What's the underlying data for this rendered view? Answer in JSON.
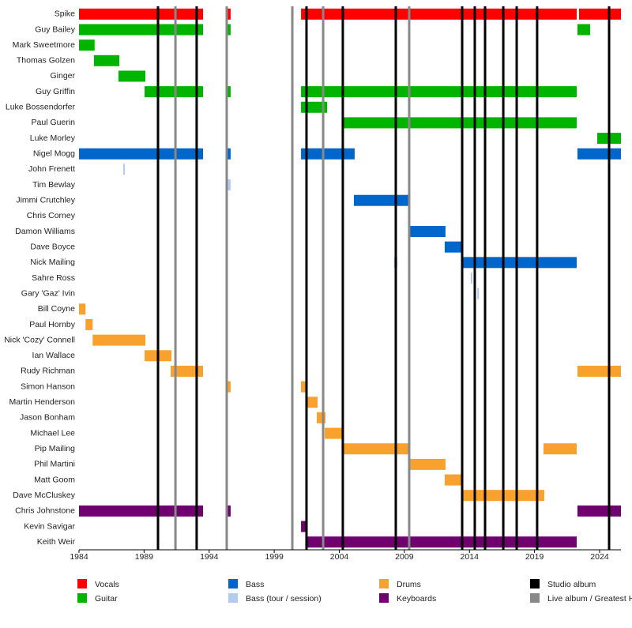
{
  "chart_data": {
    "type": "timeline",
    "xlim": [
      1984,
      2025.64
    ],
    "xticks": [
      1984,
      1989,
      1994,
      1999,
      2004,
      2009,
      2014,
      2019,
      2024
    ],
    "legend": [
      {
        "name": "Vocals",
        "color": "#ff0000"
      },
      {
        "name": "Guitar",
        "color": "#00b400"
      },
      {
        "name": "Bass",
        "color": "#0066cc"
      },
      {
        "name": "Bass (tour / session)",
        "color": "#b4cbf0"
      },
      {
        "name": "Drums",
        "color": "#f9a12e"
      },
      {
        "name": "Keyboards",
        "color": "#700070"
      },
      {
        "name": "Studio album",
        "color": "#000000"
      },
      {
        "name": "Live album / Greatest H",
        "color": "#888888"
      }
    ],
    "studio_albums": [
      1990.07,
      1993.04,
      2001.48,
      2004.27,
      2008.34,
      2013.44,
      2014.41,
      2015.2,
      2016.6,
      2017.63,
      2019.2,
      2024.73
    ],
    "live_albums": [
      1991.41,
      1995.35,
      2000.39,
      2002.76,
      2009.37
    ],
    "members": [
      {
        "name": "Spike",
        "spans": [
          {
            "role": "Vocals",
            "start": 1984,
            "end": 1993.53
          },
          {
            "role": "Vocals",
            "start": 1995.29,
            "end": 1995.65
          },
          {
            "role": "Vocals",
            "start": 2001.06,
            "end": 2022.24
          },
          {
            "role": "Vocals",
            "start": 2022.42,
            "end": 2025.64
          }
        ]
      },
      {
        "name": "Guy Bailey",
        "spans": [
          {
            "role": "Guitar",
            "start": 1984,
            "end": 1993.53
          },
          {
            "role": "Guitar",
            "start": 1995.29,
            "end": 1995.65
          },
          {
            "role": "Guitar",
            "start": 2022.3,
            "end": 2023.27
          }
        ]
      },
      {
        "name": "Mark Sweetmore",
        "spans": [
          {
            "role": "Guitar",
            "start": 1984,
            "end": 1985.2
          }
        ]
      },
      {
        "name": "Thomas Golzen",
        "spans": [
          {
            "role": "Guitar",
            "start": 1985.15,
            "end": 1987.1
          }
        ]
      },
      {
        "name": "Ginger",
        "spans": [
          {
            "role": "Guitar",
            "start": 1987.03,
            "end": 1989.1
          }
        ]
      },
      {
        "name": "Guy Griffin",
        "spans": [
          {
            "role": "Guitar",
            "start": 1989.04,
            "end": 1993.53
          },
          {
            "role": "Guitar",
            "start": 1995.29,
            "end": 1995.65
          },
          {
            "role": "Guitar",
            "start": 2001.06,
            "end": 2022.24
          }
        ]
      },
      {
        "name": "Luke Bossendorfer",
        "spans": [
          {
            "role": "Guitar",
            "start": 2001.06,
            "end": 2003.06
          }
        ]
      },
      {
        "name": "Paul Guerin",
        "spans": [
          {
            "role": "Guitar",
            "start": 2004.27,
            "end": 2022.24
          }
        ]
      },
      {
        "name": "Luke Morley",
        "spans": [
          {
            "role": "Guitar",
            "start": 2023.82,
            "end": 2025.64
          }
        ]
      },
      {
        "name": "Nigel Mogg",
        "spans": [
          {
            "role": "Bass",
            "start": 1984,
            "end": 1993.53
          },
          {
            "role": "Bass",
            "start": 1995.29,
            "end": 1995.65
          },
          {
            "role": "Bass",
            "start": 2001.06,
            "end": 2005.18
          },
          {
            "role": "Bass",
            "start": 2022.3,
            "end": 2025.64
          }
        ]
      },
      {
        "name": "John Frenett",
        "spans": [
          {
            "role": "Bass (tour / session)",
            "start": 1987.4,
            "end": 1987.52
          }
        ]
      },
      {
        "name": "Tim Bewlay",
        "spans": [
          {
            "role": "Bass (tour / session)",
            "start": 1995.29,
            "end": 1995.65
          }
        ]
      },
      {
        "name": "Jimmi Crutchley",
        "spans": [
          {
            "role": "Bass",
            "start": 2005.12,
            "end": 2009.37
          }
        ]
      },
      {
        "name": "Chris Corney",
        "spans": [
          {
            "role": "Bass (tour / session)",
            "start": 2009.3,
            "end": 2009.45
          }
        ]
      },
      {
        "name": "Damon Williams",
        "spans": [
          {
            "role": "Bass",
            "start": 2009.31,
            "end": 2012.16
          }
        ]
      },
      {
        "name": "Dave Boyce",
        "spans": [
          {
            "role": "Bass",
            "start": 2012.1,
            "end": 2013.38
          }
        ]
      },
      {
        "name": "Nick Mailing",
        "spans": [
          {
            "role": "Bass (tour / session)",
            "start": 2008.2,
            "end": 2008.46
          },
          {
            "role": "Bass",
            "start": 2013.44,
            "end": 2022.24
          }
        ]
      },
      {
        "name": "Sahre Ross",
        "spans": [
          {
            "role": "Bass (tour / session)",
            "start": 2014.1,
            "end": 2014.23
          }
        ]
      },
      {
        "name": "Gary 'Gaz' Ivin",
        "spans": [
          {
            "role": "Bass (tour / session)",
            "start": 2014.6,
            "end": 2014.73
          }
        ]
      },
      {
        "name": "Bill Coyne",
        "spans": [
          {
            "role": "Drums",
            "start": 1984,
            "end": 1984.5
          }
        ]
      },
      {
        "name": "Paul Hornby",
        "spans": [
          {
            "role": "Drums",
            "start": 1984.5,
            "end": 1985.05
          }
        ]
      },
      {
        "name": "Nick 'Cozy' Connell",
        "spans": [
          {
            "role": "Drums",
            "start": 1985.05,
            "end": 1989.1
          }
        ]
      },
      {
        "name": "Ian Wallace",
        "spans": [
          {
            "role": "Drums",
            "start": 1989.04,
            "end": 1991.1
          }
        ]
      },
      {
        "name": "Rudy Richman",
        "spans": [
          {
            "role": "Drums",
            "start": 1991.04,
            "end": 1993.53
          },
          {
            "role": "Drums",
            "start": 2022.3,
            "end": 2025.64
          }
        ]
      },
      {
        "name": "Simon Hanson",
        "spans": [
          {
            "role": "Drums",
            "start": 1995.29,
            "end": 1995.65
          },
          {
            "role": "Drums",
            "start": 2001.06,
            "end": 2001.48
          }
        ]
      },
      {
        "name": "Martin Henderson",
        "spans": [
          {
            "role": "Drums",
            "start": 2001.48,
            "end": 2002.33
          }
        ]
      },
      {
        "name": "Jason Bonham",
        "spans": [
          {
            "role": "Drums",
            "start": 2002.27,
            "end": 2002.94
          }
        ]
      },
      {
        "name": "Michael Lee",
        "spans": [
          {
            "role": "Drums",
            "start": 2002.88,
            "end": 2004.27
          }
        ]
      },
      {
        "name": "Pip Mailing",
        "spans": [
          {
            "role": "Drums",
            "start": 2004.27,
            "end": 2009.37
          },
          {
            "role": "Drums",
            "start": 2019.69,
            "end": 2022.24
          }
        ]
      },
      {
        "name": "Phil Martini",
        "spans": [
          {
            "role": "Drums",
            "start": 2009.37,
            "end": 2012.16
          }
        ]
      },
      {
        "name": "Matt Goom",
        "spans": [
          {
            "role": "Drums",
            "start": 2012.1,
            "end": 2013.38
          }
        ]
      },
      {
        "name": "Dave McCluskey",
        "spans": [
          {
            "role": "Drums",
            "start": 2013.38,
            "end": 2019.75
          }
        ]
      },
      {
        "name": "Chris Johnstone",
        "spans": [
          {
            "role": "Keyboards",
            "start": 1984,
            "end": 1993.53
          },
          {
            "role": "Keyboards",
            "start": 1995.29,
            "end": 1995.65
          },
          {
            "role": "Keyboards",
            "start": 2022.3,
            "end": 2025.64
          }
        ]
      },
      {
        "name": "Kevin Savigar",
        "spans": [
          {
            "role": "Keyboards",
            "start": 2001.06,
            "end": 2001.48
          }
        ]
      },
      {
        "name": "Keith Weir",
        "spans": [
          {
            "role": "Keyboards",
            "start": 2001.42,
            "end": 2022.24
          }
        ]
      }
    ]
  }
}
